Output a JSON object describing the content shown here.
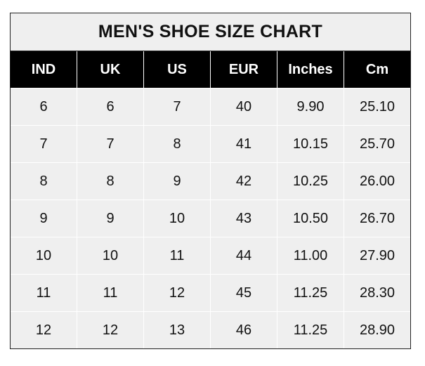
{
  "chart_data": {
    "type": "table",
    "title": "MEN'S SHOE SIZE CHART",
    "columns": [
      "IND",
      "UK",
      "US",
      "EUR",
      "Inches",
      "Cm"
    ],
    "rows": [
      [
        "6",
        "6",
        "7",
        "40",
        "9.90",
        "25.10"
      ],
      [
        "7",
        "7",
        "8",
        "41",
        "10.15",
        "25.70"
      ],
      [
        "8",
        "8",
        "9",
        "42",
        "10.25",
        "26.00"
      ],
      [
        "9",
        "9",
        "10",
        "43",
        "10.50",
        "26.70"
      ],
      [
        "10",
        "10",
        "11",
        "44",
        "11.00",
        "27.90"
      ],
      [
        "11",
        "11",
        "12",
        "45",
        "11.25",
        "28.30"
      ],
      [
        "12",
        "12",
        "13",
        "46",
        "11.25",
        "28.90"
      ]
    ],
    "colors": {
      "header_bg": "#000000",
      "header_text": "#ffffff",
      "cell_bg": "#efefef",
      "grid": "#ffffff"
    }
  }
}
